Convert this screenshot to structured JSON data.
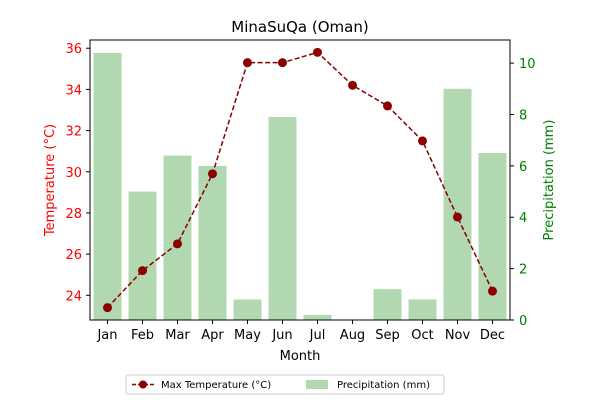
{
  "chart_data": {
    "type": "bar+line",
    "title": "MinaSuQa (Oman)",
    "xlabel": "Month",
    "categories": [
      "Jan",
      "Feb",
      "Mar",
      "Apr",
      "May",
      "Jun",
      "Jul",
      "Aug",
      "Sep",
      "Oct",
      "Nov",
      "Dec"
    ],
    "left_axis": {
      "label": "Temperature (°C)",
      "color": "#ff0000",
      "ylim": [
        22.8,
        36.4
      ],
      "ticks": [
        24,
        26,
        28,
        30,
        32,
        34,
        36
      ]
    },
    "right_axis": {
      "label": "Precipitation (mm)",
      "color": "#008000",
      "ylim": [
        0,
        10.9
      ],
      "ticks": [
        0,
        2,
        4,
        6,
        8,
        10
      ]
    },
    "series": [
      {
        "name": "Max Temperature (°C)",
        "type": "line",
        "axis": "left",
        "color": "#8b0000",
        "values": [
          23.4,
          25.2,
          26.5,
          29.9,
          35.3,
          35.3,
          35.8,
          34.2,
          33.2,
          31.5,
          27.8,
          24.2
        ]
      },
      {
        "name": "Precipitation (mm)",
        "type": "bar",
        "axis": "right",
        "color": "#b2d8b2",
        "values": [
          10.4,
          5.0,
          6.4,
          6.0,
          0.8,
          7.9,
          0.2,
          0.0,
          1.2,
          0.8,
          9.0,
          6.5
        ]
      }
    ],
    "legend_position": "bottom-center",
    "grid": false
  }
}
